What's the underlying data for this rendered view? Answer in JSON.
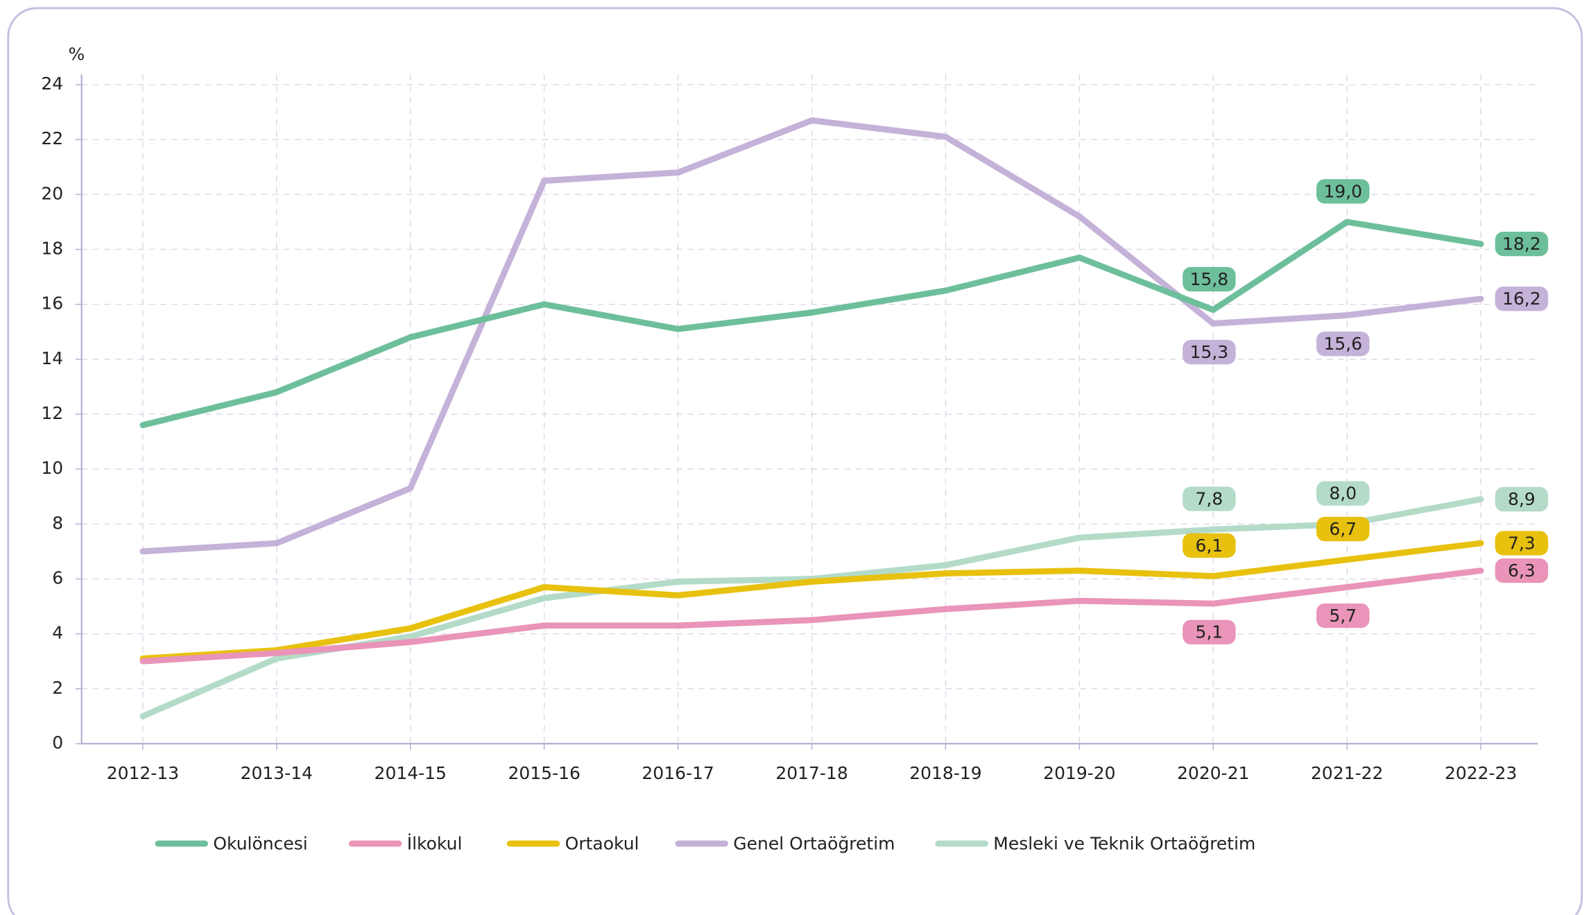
{
  "chart_data": {
    "type": "line",
    "y_unit": "%",
    "categories": [
      "2012-13",
      "2013-14",
      "2014-15",
      "2015-16",
      "2016-17",
      "2017-18",
      "2018-19",
      "2019-20",
      "2020-21",
      "2021-22",
      "2022-23"
    ],
    "series": [
      {
        "name": "Okulöncesi",
        "color": "#6dbf9b",
        "label_color": "#6dbf9b",
        "values": [
          11.6,
          12.8,
          14.8,
          16.0,
          15.1,
          15.7,
          16.5,
          17.7,
          15.8,
          19.0,
          18.2
        ],
        "value_labels": [
          null,
          null,
          null,
          null,
          null,
          null,
          null,
          null,
          "15,8",
          "19,0",
          "18,2"
        ]
      },
      {
        "name": "İlkokul",
        "color": "#e994b8",
        "label_color": "#e994b8",
        "values": [
          3.0,
          3.3,
          3.7,
          4.3,
          4.3,
          4.5,
          4.9,
          5.2,
          5.1,
          5.7,
          6.3
        ],
        "value_labels": [
          null,
          null,
          null,
          null,
          null,
          null,
          null,
          null,
          "5,1",
          "5,7",
          "6,3"
        ]
      },
      {
        "name": "Ortaokul",
        "color": "#e8c10e",
        "label_color": "#e8c10e",
        "values": [
          3.1,
          3.4,
          4.2,
          5.7,
          5.4,
          5.9,
          6.2,
          6.3,
          6.1,
          6.7,
          7.3
        ],
        "value_labels": [
          null,
          null,
          null,
          null,
          null,
          null,
          null,
          null,
          "6,1",
          "6,7",
          "7,3"
        ]
      },
      {
        "name": "Genel Ortaöğretim",
        "color": "#c4b2d8",
        "label_color": "#c4b2d8",
        "values": [
          7.0,
          7.3,
          9.3,
          20.5,
          20.8,
          22.7,
          22.1,
          19.2,
          15.3,
          15.6,
          16.2
        ],
        "value_labels": [
          null,
          null,
          null,
          null,
          null,
          null,
          null,
          null,
          "15,3",
          "15,6",
          "16,2"
        ]
      },
      {
        "name": "Mesleki ve Teknik Ortaöğretim",
        "color": "#b3dbc8",
        "label_color": "#b3dbc8",
        "values": [
          1.0,
          3.1,
          3.9,
          5.3,
          5.9,
          6.0,
          6.5,
          7.5,
          7.8,
          8.0,
          8.9
        ],
        "value_labels": [
          null,
          null,
          null,
          null,
          null,
          null,
          null,
          null,
          "7,8",
          "8,0",
          "8,9"
        ]
      }
    ],
    "ylim": [
      0,
      24
    ],
    "yticks": [
      0,
      2,
      4,
      6,
      8,
      10,
      12,
      14,
      16,
      18,
      20,
      22,
      24
    ],
    "grid": true,
    "legend": "bottom"
  }
}
